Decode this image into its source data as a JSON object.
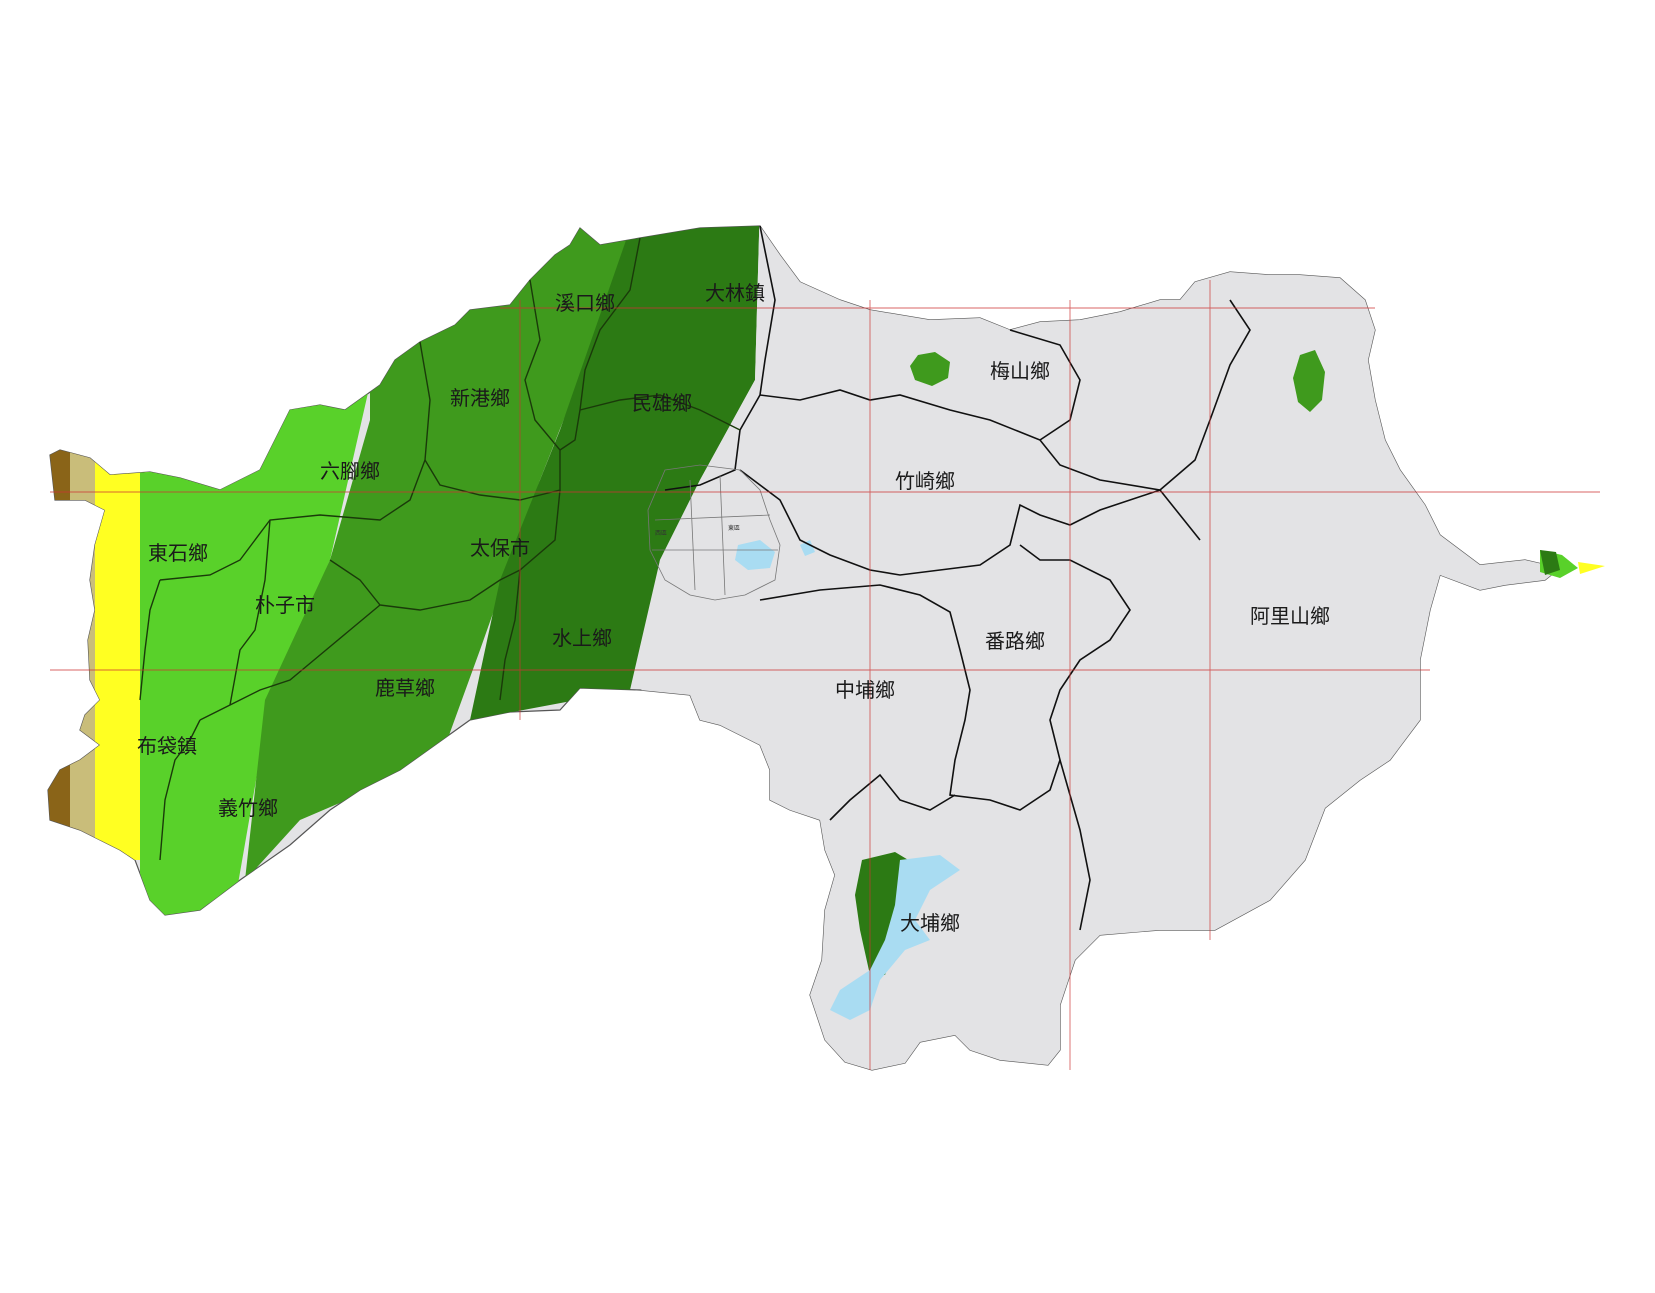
{
  "map": {
    "colors": {
      "background": "#ffffff",
      "land_grey": "#e3e3e5",
      "green_dark": "#2c7a14",
      "green_mid": "#3f9a1d",
      "green_light": "#59d12a",
      "green_pale": "#7edc3d",
      "yellow": "#ffff22",
      "khaki": "#c9bd7a",
      "brown": "#8a6418",
      "water": "#a9dcf2",
      "grid_line": "#cc3333",
      "border": "#111111"
    },
    "districts": {
      "dalin": "大林鎮",
      "xikou": "溪口鄉",
      "meishan": "梅山鄉",
      "xingang": "新港鄉",
      "minxiong": "民雄鄉",
      "liujiao": "六腳鄉",
      "zhuqi": "竹崎鄉",
      "dongshi": "東石鄉",
      "taibao": "太保市",
      "puzi": "朴子市",
      "shuishang": "水上鄉",
      "fanlu": "番路鄉",
      "alishan": "阿里山鄉",
      "lucao": "鹿草鄉",
      "zhongpu": "中埔鄉",
      "budai": "布袋鎮",
      "yizhu": "義竹鄉",
      "dapu": "大埔鄉"
    },
    "city_labels": {
      "west": "西區",
      "east": "東區"
    }
  }
}
